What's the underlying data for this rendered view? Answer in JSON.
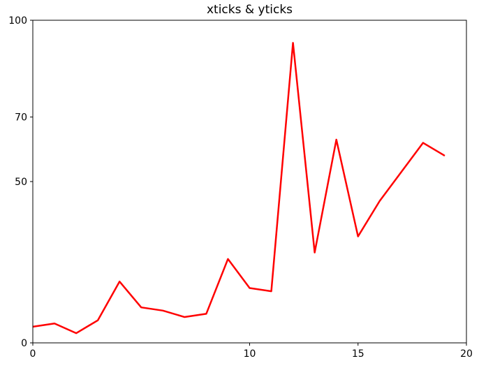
{
  "chart_data": {
    "type": "line",
    "title": "xticks & yticks",
    "xlabel": "",
    "ylabel": "",
    "xlim": [
      0,
      20
    ],
    "ylim": [
      0,
      100
    ],
    "xticks": [
      0,
      10,
      15,
      20
    ],
    "yticks": [
      0,
      50,
      70,
      100
    ],
    "grid": false,
    "line_color": "#ff0000",
    "series": [
      {
        "x": [
          0,
          1,
          2,
          3,
          4,
          5,
          6,
          7,
          8,
          9,
          10,
          11,
          12,
          13,
          14,
          15,
          16,
          17,
          18,
          19
        ],
        "values": [
          5,
          6,
          3,
          7,
          19,
          11,
          10,
          8,
          9,
          26,
          17,
          16,
          93,
          28,
          63,
          33,
          44,
          53,
          62,
          58
        ]
      }
    ]
  }
}
